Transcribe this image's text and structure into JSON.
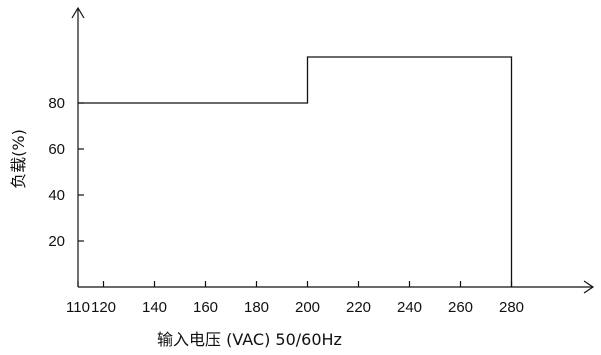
{
  "chart_data": {
    "type": "line",
    "title": "",
    "xlabel": "输入电压 (VAC)  50/60Hz",
    "ylabel": "负载(%)",
    "x_ticks": [
      110,
      120,
      140,
      160,
      180,
      200,
      220,
      240,
      260,
      280
    ],
    "y_ticks": [
      20,
      40,
      60,
      80
    ],
    "xlim": [
      110,
      280
    ],
    "ylim": [
      0,
      115
    ],
    "grid": false,
    "series": [
      {
        "points": [
          {
            "x": 110,
            "y": 80
          },
          {
            "x": 200,
            "y": 80
          },
          {
            "x": 200,
            "y": 100
          },
          {
            "x": 280,
            "y": 100
          },
          {
            "x": 280,
            "y": 0
          }
        ]
      }
    ]
  }
}
